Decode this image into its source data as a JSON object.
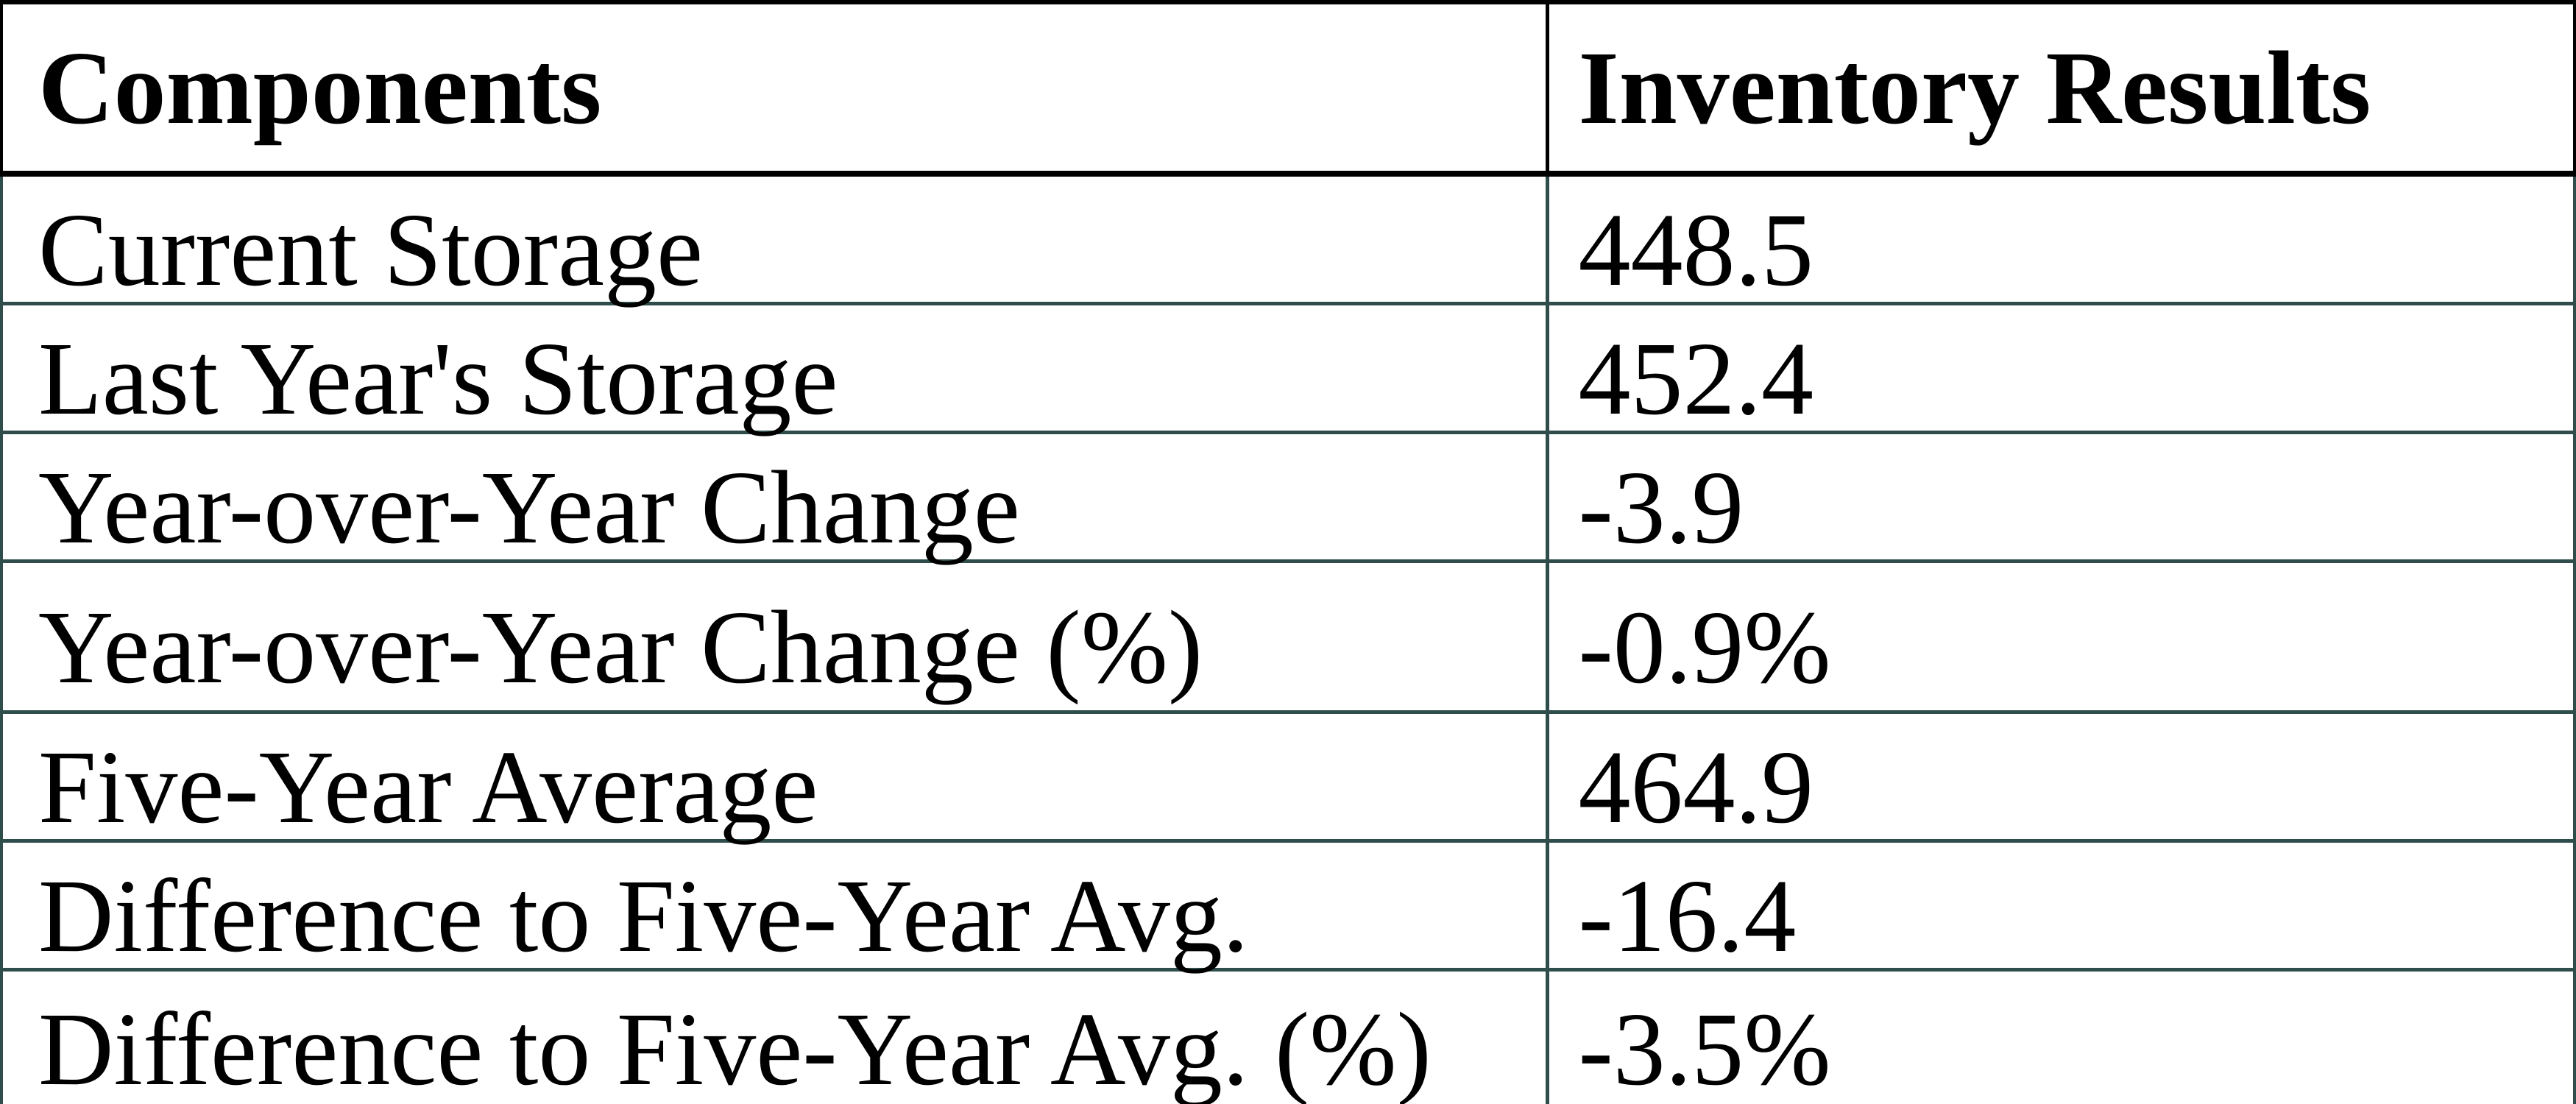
{
  "chart_data": {
    "type": "table",
    "columns": [
      "Components",
      "Inventory Results"
    ],
    "rows": [
      [
        "Current Storage",
        "448.5"
      ],
      [
        "Last Year's Storage",
        "452.4"
      ],
      [
        "Year-over-Year Change",
        "-3.9"
      ],
      [
        "Year-over-Year Change (%)",
        "-0.9%"
      ],
      [
        "Five-Year Average",
        "464.9"
      ],
      [
        "Difference to Five-Year Avg.",
        "-16.4"
      ],
      [
        "Difference to Five-Year Avg. (%)",
        "-3.5%"
      ]
    ]
  },
  "colors": {
    "header_border": "#000000",
    "body_border": "#2f4e4b",
    "text": "#000000",
    "background": "#ffffff"
  }
}
